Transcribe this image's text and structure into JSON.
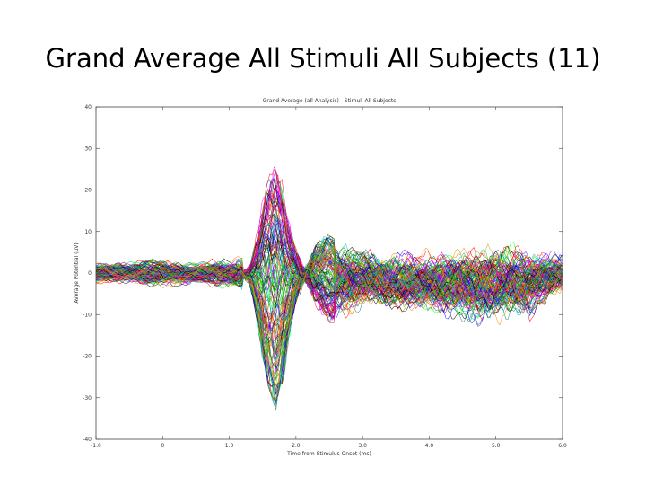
{
  "slide": {
    "title": "Grand Average All Stimuli All Subjects (11)"
  },
  "chart_data": {
    "type": "line",
    "title": "Grand Average (all Analysis) - Stimuli All Subjects",
    "xlabel": "Time from Stimulus Onset (ms)",
    "ylabel": "Average Potential (µV)",
    "xlim": [
      -100,
      600
    ],
    "ylim": [
      -40,
      40
    ],
    "xticks": [
      -100,
      0,
      100,
      200,
      300,
      400,
      500,
      600
    ],
    "xtick_labels": [
      "-1.0",
      "0",
      "1.0",
      "2.0",
      "3.0",
      "4.0",
      "5.0",
      "6.0"
    ],
    "yticks": [
      -40,
      -30,
      -20,
      -10,
      0,
      10,
      20,
      30,
      40
    ],
    "ytick_labels": [
      "-40",
      "-30",
      "-20",
      "-10",
      "0",
      "10",
      "20",
      "30",
      "40"
    ],
    "grid": false,
    "legend": "none",
    "n_channels": 128,
    "envelope": {
      "time_ms": [
        -100,
        -50,
        0,
        50,
        100,
        130,
        150,
        170,
        200,
        230,
        260,
        300,
        350,
        400,
        450,
        500,
        550,
        600
      ],
      "upper_uv": [
        3,
        3,
        4,
        3,
        4,
        5,
        20,
        27,
        12,
        11,
        8,
        7,
        6,
        6,
        8,
        8,
        7,
        5
      ],
      "lower_uv": [
        -3,
        -3,
        -4,
        -3,
        -4,
        -6,
        -23,
        -33,
        -13,
        -12,
        -12,
        -10,
        -10,
        -11,
        -13,
        -13,
        -12,
        -6
      ]
    },
    "series_colors": [
      "#0000ff",
      "#ff0000",
      "#00a000",
      "#ff00ff",
      "#00bfbf",
      "#c0a000",
      "#000000",
      "#ff8000",
      "#8000ff",
      "#008080",
      "#800000",
      "#00ff00"
    ]
  }
}
